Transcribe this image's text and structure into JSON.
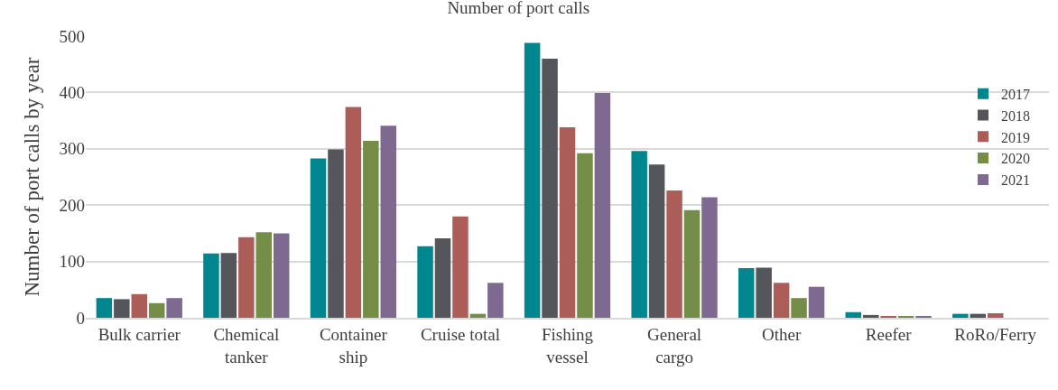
{
  "chart_data": {
    "type": "bar",
    "title": "Number of port calls",
    "ylabel": "Number of port calls by year",
    "categories": [
      "Bulk carrier",
      "Chemical tanker",
      "Container ship",
      "Cruise total",
      "Fishing vessel",
      "General cargo",
      "Other",
      "Reefer",
      "RoRo/Ferry"
    ],
    "series": [
      {
        "name": "2017",
        "color": "#00868f",
        "values": [
          35,
          114,
          283,
          127,
          488,
          296,
          88,
          10,
          7
        ]
      },
      {
        "name": "2018",
        "color": "#55565b",
        "values": [
          33,
          115,
          299,
          141,
          460,
          272,
          89,
          5,
          7
        ]
      },
      {
        "name": "2019",
        "color": "#ad5d57",
        "values": [
          42,
          143,
          374,
          180,
          338,
          226,
          62,
          2,
          8
        ]
      },
      {
        "name": "2020",
        "color": "#758e47",
        "values": [
          26,
          152,
          314,
          7,
          292,
          191,
          35,
          3,
          null
        ]
      },
      {
        "name": "2021",
        "color": "#7e6a90",
        "values": [
          35,
          150,
          341,
          62,
          399,
          214,
          55,
          3,
          null
        ]
      }
    ],
    "ylim": [
      0,
      500
    ],
    "yticks": [
      0,
      100,
      200,
      300,
      400,
      500
    ],
    "grid": "y",
    "legend": "right"
  }
}
